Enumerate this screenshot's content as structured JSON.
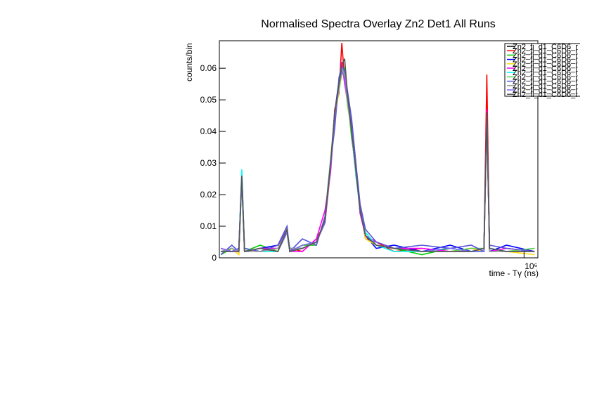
{
  "chart_data": {
    "type": "line",
    "title": "Normalised Spectra Overlay Zn2 Det1 All Runs",
    "xlabel": "time - Tγ (ns)",
    "ylabel": "counts/bin",
    "xscale": "log",
    "legend": "top-right",
    "xlim": [
      14900,
      1210000
    ],
    "ylim": [
      0,
      0.0687
    ],
    "xticks": [
      {
        "value": 1000000,
        "label": "10⁶"
      }
    ],
    "yticks": [
      0,
      0.01,
      0.02,
      0.03,
      0.04,
      0.05,
      0.06
    ],
    "x": [
      15200,
      17700,
      19500,
      20300,
      21100,
      26200,
      33400,
      37900,
      39400,
      46900,
      56900,
      64000,
      69200,
      73300,
      77700,
      80800,
      84000,
      87300,
      92500,
      98100,
      104000,
      112000,
      130000,
      166000,
      244000,
      361000,
      483000,
      575000,
      598000,
      621000,
      784000,
      1157000
    ],
    "series": [
      {
        "name": "Zn2_fi_d1_C6D6_r",
        "color": "#000000",
        "values": [
          0.002,
          0.003,
          0.002,
          0.026,
          0.002,
          0.003,
          0.002,
          0.009,
          0.002,
          0.003,
          0.005,
          0.012,
          0.03,
          0.045,
          0.055,
          0.06,
          0.058,
          0.05,
          0.04,
          0.028,
          0.015,
          0.007,
          0.004,
          0.003,
          0.002,
          0.002,
          0.002,
          0.003,
          0.045,
          0.003,
          0.002,
          0.002
        ]
      },
      {
        "name": "Zn2_fi_d1_C6D6_r",
        "color": "#ff0000",
        "values": [
          0.003,
          0.002,
          0.003,
          0.025,
          0.003,
          0.002,
          0.003,
          0.008,
          0.003,
          0.002,
          0.006,
          0.011,
          0.028,
          0.047,
          0.052,
          0.068,
          0.056,
          0.049,
          0.041,
          0.026,
          0.016,
          0.006,
          0.005,
          0.002,
          0.003,
          0.002,
          0.003,
          0.002,
          0.058,
          0.002,
          0.003,
          0.002
        ]
      },
      {
        "name": "Zn2_fi_d1_C6D6_r",
        "color": "#00cc00",
        "values": [
          0.001,
          0.003,
          0.002,
          0.024,
          0.002,
          0.004,
          0.002,
          0.009,
          0.002,
          0.004,
          0.004,
          0.013,
          0.031,
          0.044,
          0.054,
          0.059,
          0.06,
          0.051,
          0.038,
          0.029,
          0.014,
          0.008,
          0.004,
          0.003,
          0.001,
          0.003,
          0.002,
          0.003,
          0.044,
          0.003,
          0.002,
          0.003
        ]
      },
      {
        "name": "Zn2_fi_d1_C6D6_r",
        "color": "#0000ff",
        "values": [
          0.002,
          0.002,
          0.003,
          0.027,
          0.002,
          0.003,
          0.004,
          0.009,
          0.003,
          0.003,
          0.005,
          0.012,
          0.029,
          0.046,
          0.056,
          0.061,
          0.057,
          0.052,
          0.039,
          0.027,
          0.015,
          0.007,
          0.003,
          0.004,
          0.002,
          0.004,
          0.002,
          0.002,
          0.046,
          0.002,
          0.004,
          0.002
        ]
      },
      {
        "name": "Zn2_fi_d1_C6D6_r",
        "color": "#ffdd00",
        "values": [
          0.002,
          0.003,
          0.001,
          0.025,
          0.003,
          0.002,
          0.002,
          0.008,
          0.002,
          0.003,
          0.005,
          0.011,
          0.03,
          0.043,
          0.053,
          0.058,
          0.059,
          0.048,
          0.041,
          0.027,
          0.016,
          0.006,
          0.004,
          0.003,
          0.002,
          0.002,
          0.003,
          0.002,
          0.043,
          0.003,
          0.002,
          0.001
        ]
      },
      {
        "name": "Zn2_fi_d1_C6D6_r",
        "color": "#ff00ff",
        "values": [
          0.003,
          0.002,
          0.002,
          0.026,
          0.002,
          0.003,
          0.003,
          0.009,
          0.002,
          0.002,
          0.006,
          0.015,
          0.027,
          0.045,
          0.055,
          0.062,
          0.055,
          0.05,
          0.042,
          0.028,
          0.014,
          0.007,
          0.005,
          0.003,
          0.003,
          0.002,
          0.002,
          0.003,
          0.047,
          0.002,
          0.003,
          0.002
        ]
      },
      {
        "name": "Zn2_fi_d1_C6D6_r",
        "color": "#00ffff",
        "values": [
          0.002,
          0.003,
          0.002,
          0.028,
          0.003,
          0.002,
          0.002,
          0.009,
          0.003,
          0.003,
          0.005,
          0.012,
          0.029,
          0.044,
          0.054,
          0.06,
          0.058,
          0.049,
          0.04,
          0.026,
          0.015,
          0.008,
          0.004,
          0.002,
          0.002,
          0.003,
          0.002,
          0.002,
          0.045,
          0.003,
          0.002,
          0.002
        ]
      },
      {
        "name": "Zn2_fi_d1_C6D6_r",
        "color": "#59d354",
        "values": [
          0.002,
          0.002,
          0.003,
          0.025,
          0.002,
          0.003,
          0.002,
          0.008,
          0.002,
          0.003,
          0.005,
          0.012,
          0.031,
          0.046,
          0.053,
          0.059,
          0.057,
          0.05,
          0.039,
          0.028,
          0.016,
          0.007,
          0.004,
          0.003,
          0.002,
          0.002,
          0.003,
          0.003,
          0.044,
          0.002,
          0.002,
          0.003
        ]
      },
      {
        "name": "Zn2_fi_d1_C6D6_r",
        "color": "#5954d8",
        "values": [
          0.001,
          0.004,
          0.002,
          0.026,
          0.003,
          0.002,
          0.004,
          0.01,
          0.002,
          0.006,
          0.004,
          0.013,
          0.03,
          0.041,
          0.057,
          0.061,
          0.059,
          0.053,
          0.044,
          0.03,
          0.017,
          0.009,
          0.005,
          0.003,
          0.004,
          0.003,
          0.004,
          0.002,
          0.046,
          0.004,
          0.003,
          0.002
        ]
      },
      {
        "name": "Zn2_fi_d1_C6D6_r",
        "color": "#999999",
        "values": [
          0.002,
          0.003,
          0.002,
          0.026,
          0.002,
          0.002,
          0.003,
          0.009,
          0.003,
          0.003,
          0.005,
          0.012,
          0.03,
          0.045,
          0.054,
          0.06,
          0.058,
          0.05,
          0.04,
          0.027,
          0.015,
          0.007,
          0.004,
          0.003,
          0.002,
          0.002,
          0.002,
          0.003,
          0.045,
          0.002,
          0.002,
          0.002
        ]
      },
      {
        "name": "Zn2_fi_d1_C6D6_r",
        "color": "#7b68ee",
        "values": [
          0.003,
          0.002,
          0.003,
          0.024,
          0.002,
          0.003,
          0.002,
          0.008,
          0.002,
          0.004,
          0.005,
          0.011,
          0.029,
          0.044,
          0.055,
          0.059,
          0.057,
          0.051,
          0.041,
          0.028,
          0.015,
          0.007,
          0.004,
          0.003,
          0.002,
          0.003,
          0.002,
          0.002,
          0.044,
          0.003,
          0.002,
          0.002
        ]
      },
      {
        "name": "Zn2_fi_d1_C6D6_r",
        "color": "#555555",
        "values": [
          0.002,
          0.002,
          0.002,
          0.026,
          0.002,
          0.003,
          0.002,
          0.009,
          0.002,
          0.003,
          0.005,
          0.012,
          0.03,
          0.046,
          0.055,
          0.061,
          0.063,
          0.052,
          0.04,
          0.028,
          0.015,
          0.007,
          0.004,
          0.003,
          0.002,
          0.002,
          0.002,
          0.003,
          0.046,
          0.003,
          0.002,
          0.002
        ]
      }
    ]
  }
}
